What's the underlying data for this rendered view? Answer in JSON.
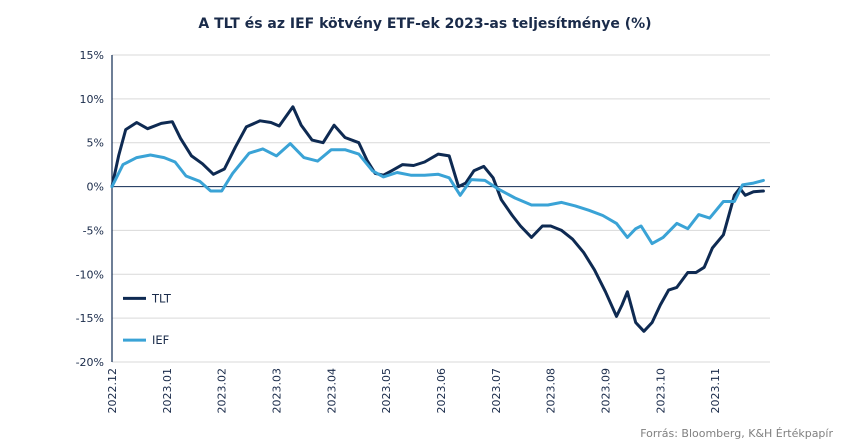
{
  "chart_data": {
    "type": "line",
    "title": "A TLT és az IEF kötvény ETF-ek 2023-as teljesítménye (%)",
    "source": "Forrás: Bloomberg, K&H Értékpapír",
    "xlabel": "",
    "ylabel": "",
    "ylim": [
      -20,
      15
    ],
    "y_ticks": [
      15,
      10,
      5,
      0,
      -5,
      -10,
      -15,
      -20
    ],
    "y_tick_labels": [
      "15%",
      "10%",
      "5%",
      "0%",
      "-5%",
      "-10%",
      "-15%",
      "-20%"
    ],
    "x_tick_labels": [
      "2022.12",
      "2023.01",
      "2023.02",
      "2023.03",
      "2023.04",
      "2023.05",
      "2023.06",
      "2023.07",
      "2023.08",
      "2023.09",
      "2023.10",
      "2023.11"
    ],
    "x_range": [
      0,
      12
    ],
    "grid": "horizontal",
    "legend_position": "left",
    "series": [
      {
        "name": "TLT",
        "color": "#0e2a52",
        "points": [
          [
            0.0,
            0.0
          ],
          [
            0.12,
            3.5
          ],
          [
            0.25,
            6.5
          ],
          [
            0.45,
            7.3
          ],
          [
            0.65,
            6.6
          ],
          [
            0.9,
            7.2
          ],
          [
            1.1,
            7.4
          ],
          [
            1.25,
            5.5
          ],
          [
            1.45,
            3.5
          ],
          [
            1.65,
            2.6
          ],
          [
            1.85,
            1.4
          ],
          [
            2.05,
            2.0
          ],
          [
            2.25,
            4.5
          ],
          [
            2.45,
            6.8
          ],
          [
            2.7,
            7.5
          ],
          [
            2.9,
            7.3
          ],
          [
            3.05,
            6.9
          ],
          [
            3.3,
            9.1
          ],
          [
            3.45,
            7.0
          ],
          [
            3.65,
            5.3
          ],
          [
            3.85,
            5.0
          ],
          [
            4.05,
            7.0
          ],
          [
            4.25,
            5.6
          ],
          [
            4.5,
            5.0
          ],
          [
            4.65,
            3.0
          ],
          [
            4.8,
            1.5
          ],
          [
            4.95,
            1.3
          ],
          [
            5.1,
            1.8
          ],
          [
            5.3,
            2.5
          ],
          [
            5.5,
            2.4
          ],
          [
            5.7,
            2.8
          ],
          [
            5.95,
            3.7
          ],
          [
            6.15,
            3.5
          ],
          [
            6.32,
            0.0
          ],
          [
            6.45,
            0.4
          ],
          [
            6.6,
            1.8
          ],
          [
            6.78,
            2.3
          ],
          [
            6.95,
            1.0
          ],
          [
            7.1,
            -1.5
          ],
          [
            7.3,
            -3.3
          ],
          [
            7.45,
            -4.5
          ],
          [
            7.65,
            -5.8
          ],
          [
            7.85,
            -4.5
          ],
          [
            8.0,
            -4.5
          ],
          [
            8.2,
            -5.0
          ],
          [
            8.4,
            -6.0
          ],
          [
            8.6,
            -7.5
          ],
          [
            8.8,
            -9.5
          ],
          [
            9.0,
            -12.0
          ],
          [
            9.2,
            -14.8
          ],
          [
            9.3,
            -13.5
          ],
          [
            9.4,
            -12.0
          ],
          [
            9.55,
            -15.5
          ],
          [
            9.7,
            -16.5
          ],
          [
            9.85,
            -15.5
          ],
          [
            10.0,
            -13.5
          ],
          [
            10.15,
            -11.8
          ],
          [
            10.3,
            -11.5
          ],
          [
            10.5,
            -9.8
          ],
          [
            10.65,
            -9.8
          ],
          [
            10.8,
            -9.2
          ],
          [
            10.95,
            -7.0
          ],
          [
            11.15,
            -5.5
          ],
          [
            11.35,
            -1.0
          ],
          [
            11.45,
            -0.2
          ],
          [
            11.55,
            -1.0
          ],
          [
            11.7,
            -0.6
          ],
          [
            11.88,
            -0.5
          ]
        ]
      },
      {
        "name": "IEF",
        "color": "#3aa3d6",
        "points": [
          [
            0.0,
            0.0
          ],
          [
            0.2,
            2.5
          ],
          [
            0.45,
            3.3
          ],
          [
            0.7,
            3.6
          ],
          [
            0.95,
            3.3
          ],
          [
            1.15,
            2.8
          ],
          [
            1.35,
            1.2
          ],
          [
            1.6,
            0.6
          ],
          [
            1.8,
            -0.5
          ],
          [
            2.0,
            -0.5
          ],
          [
            2.2,
            1.5
          ],
          [
            2.5,
            3.8
          ],
          [
            2.75,
            4.3
          ],
          [
            3.0,
            3.5
          ],
          [
            3.25,
            4.9
          ],
          [
            3.5,
            3.3
          ],
          [
            3.75,
            2.9
          ],
          [
            4.0,
            4.2
          ],
          [
            4.25,
            4.2
          ],
          [
            4.5,
            3.7
          ],
          [
            4.75,
            1.8
          ],
          [
            4.95,
            1.1
          ],
          [
            5.2,
            1.6
          ],
          [
            5.45,
            1.3
          ],
          [
            5.7,
            1.3
          ],
          [
            5.95,
            1.4
          ],
          [
            6.15,
            1.0
          ],
          [
            6.35,
            -1.0
          ],
          [
            6.55,
            0.8
          ],
          [
            6.8,
            0.7
          ],
          [
            7.05,
            -0.3
          ],
          [
            7.35,
            -1.3
          ],
          [
            7.65,
            -2.1
          ],
          [
            7.95,
            -2.1
          ],
          [
            8.2,
            -1.8
          ],
          [
            8.45,
            -2.2
          ],
          [
            8.7,
            -2.7
          ],
          [
            8.95,
            -3.3
          ],
          [
            9.2,
            -4.2
          ],
          [
            9.4,
            -5.8
          ],
          [
            9.55,
            -4.8
          ],
          [
            9.65,
            -4.5
          ],
          [
            9.85,
            -6.5
          ],
          [
            10.05,
            -5.8
          ],
          [
            10.3,
            -4.2
          ],
          [
            10.5,
            -4.8
          ],
          [
            10.7,
            -3.2
          ],
          [
            10.9,
            -3.6
          ],
          [
            11.15,
            -1.7
          ],
          [
            11.35,
            -1.7
          ],
          [
            11.5,
            0.2
          ],
          [
            11.7,
            0.4
          ],
          [
            11.88,
            0.7
          ]
        ]
      }
    ]
  }
}
